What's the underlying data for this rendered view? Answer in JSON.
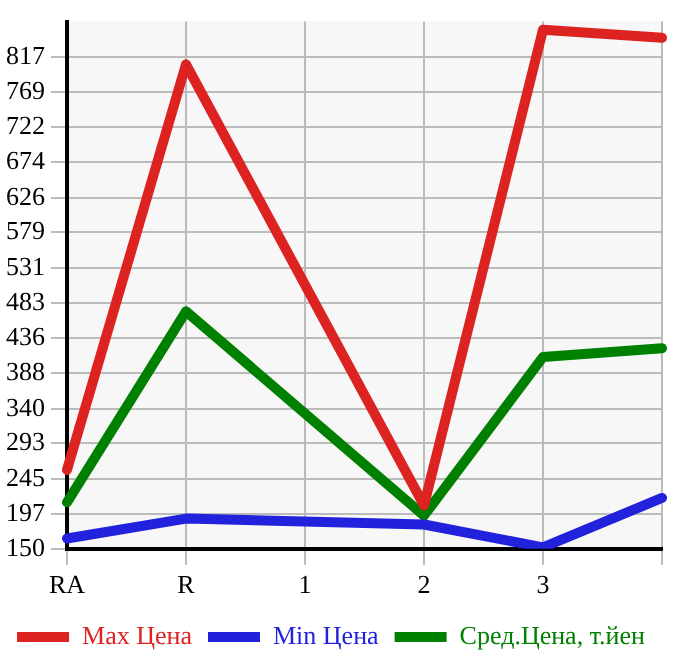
{
  "chart_data": {
    "type": "line",
    "categories": [
      "RA",
      "R",
      "1",
      "2",
      "3",
      null
    ],
    "ylim": [
      150,
      865
    ],
    "yticks": [
      150,
      197,
      245,
      293,
      340,
      388,
      436,
      483,
      531,
      579,
      626,
      674,
      722,
      769,
      817
    ],
    "grid": true,
    "legend": "bottom",
    "marker": "none",
    "series": [
      {
        "name": "Max Цена",
        "color": "#dd2222",
        "values": [
          257,
          807,
          null,
          209,
          854,
          843
        ]
      },
      {
        "name": "Min Цена",
        "color": "#2222dd",
        "values": [
          164,
          191,
          null,
          183,
          152,
          219
        ]
      },
      {
        "name": "Сред.Цена, т.йен",
        "color": "#008000",
        "values": [
          213,
          472,
          null,
          195,
          410,
          422
        ]
      }
    ]
  }
}
